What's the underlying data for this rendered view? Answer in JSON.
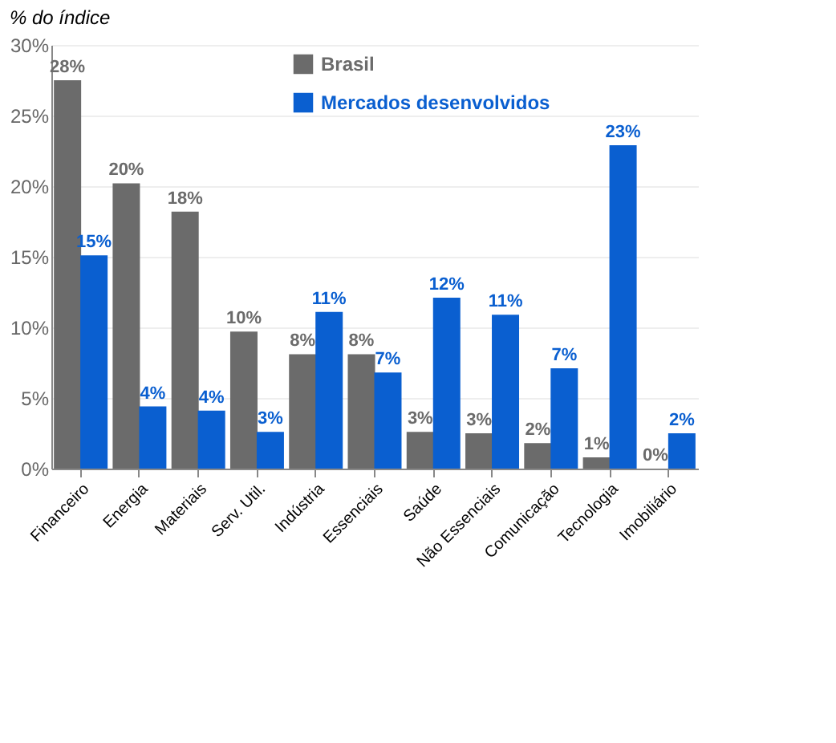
{
  "chart_data": {
    "type": "bar",
    "title": "% do índice",
    "categories": [
      "Financeiro",
      "Energia",
      "Materiais",
      "Serv. Util.",
      "Indústria",
      "Essenciais",
      "Saúde",
      "Não Essenciais",
      "Comunicação",
      "Tecnologia",
      "Imobiliário"
    ],
    "series": [
      {
        "name": "Brasil",
        "color": "#6b6b6b",
        "values": [
          27.5,
          20.2,
          18.2,
          9.7,
          8.1,
          8.1,
          2.6,
          2.5,
          1.8,
          0.8,
          0
        ],
        "value_labels": [
          "28%",
          "20%",
          "18%",
          "10%",
          "8%",
          "8%",
          "3%",
          "3%",
          "2%",
          "1%",
          "0%"
        ]
      },
      {
        "name": "Mercados desenvolvidos",
        "color": "#0a5fd0",
        "values": [
          15.1,
          4.4,
          4.1,
          2.6,
          11.1,
          6.8,
          12.1,
          10.9,
          7.1,
          22.9,
          2.5
        ],
        "value_labels": [
          "15%",
          "4%",
          "4%",
          "3%",
          "11%",
          "7%",
          "12%",
          "11%",
          "7%",
          "23%",
          "2%"
        ]
      }
    ],
    "ylim": [
      0,
      30
    ],
    "yticks": [
      {
        "value": 0,
        "label": "0%"
      },
      {
        "value": 5,
        "label": "5%"
      },
      {
        "value": 10,
        "label": "10%"
      },
      {
        "value": 15,
        "label": "15%"
      },
      {
        "value": 20,
        "label": "20%"
      },
      {
        "value": 25,
        "label": "25%"
      },
      {
        "value": 30,
        "label": "30%"
      }
    ],
    "grid": "y",
    "legend": "top"
  }
}
